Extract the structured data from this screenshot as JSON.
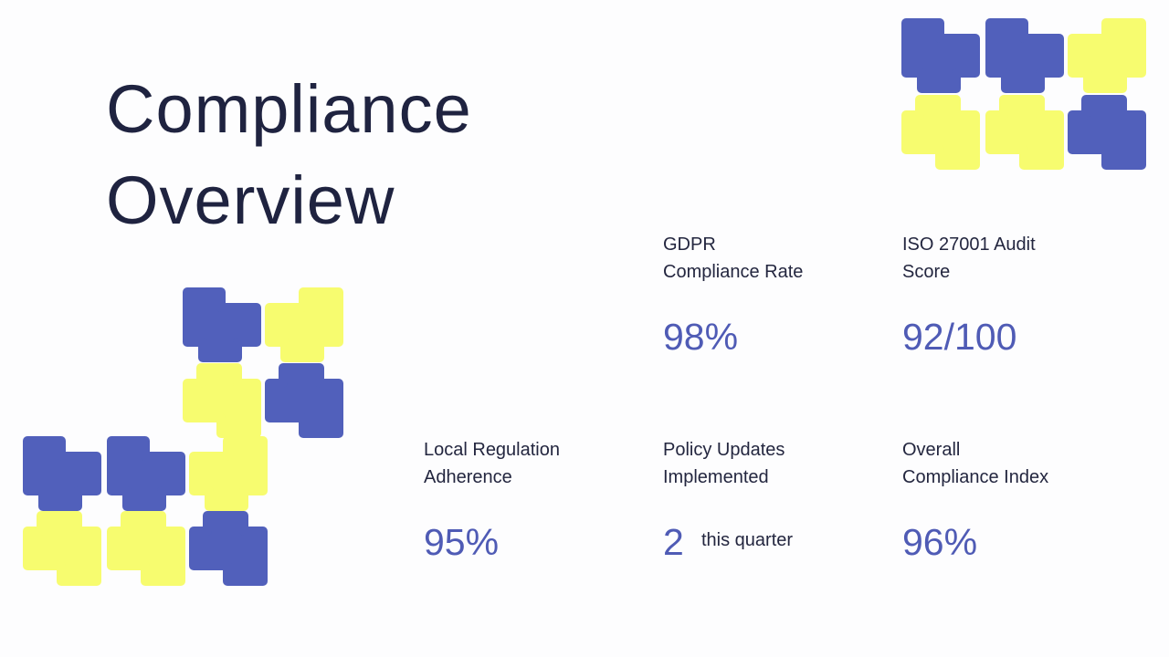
{
  "title": {
    "line1": "Compliance",
    "line2": "Overview"
  },
  "colors": {
    "blue": "#5160bb",
    "yellow": "#f7fc6f",
    "accent": "#4f5bb5",
    "text": "#1f2340"
  },
  "stats": [
    {
      "label_line1": "GDPR",
      "label_line2": "Compliance Rate",
      "value": "98%"
    },
    {
      "label_line1": "ISO 27001 Audit",
      "label_line2": "Score",
      "value": "92/100"
    },
    {
      "label_line1": "Local Regulation",
      "label_line2": "Adherence",
      "value": "95%"
    },
    {
      "label_line1": "Policy Updates",
      "label_line2": "Implemented",
      "value": "2",
      "unit": "this quarter"
    },
    {
      "label_line1": "Overall",
      "label_line2": "Compliance Index",
      "value": "96%"
    }
  ]
}
